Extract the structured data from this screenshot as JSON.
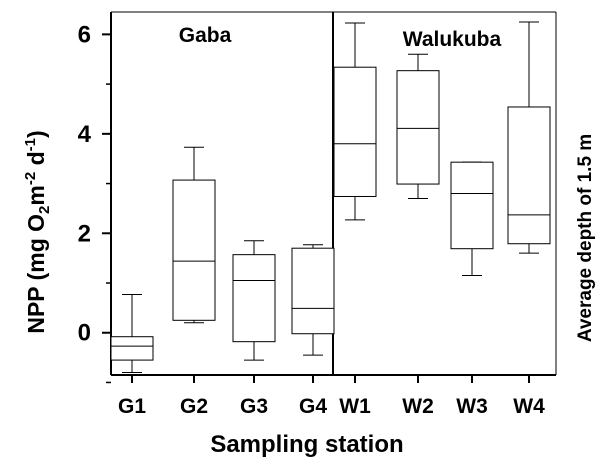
{
  "chart_data": {
    "type": "box",
    "xlabel": "Sampling station",
    "ylabel": {
      "prefix": "NPP (mg O",
      "sub1": "2",
      "mid1": "m",
      "sup1": "-2",
      "mid2": " d",
      "sup2": "-1",
      "suffix": ")"
    },
    "right_label": "Average depth of 1.5 m",
    "panels": [
      {
        "label": "Gaba",
        "categories": [
          "G1",
          "G2",
          "G3",
          "G4"
        ]
      },
      {
        "label": "Walukuba",
        "categories": [
          "W1",
          "W2",
          "W3",
          "W4"
        ]
      }
    ],
    "ylim": [
      -0.85,
      6.45
    ],
    "yticks": [
      "0",
      "2",
      "4",
      "6"
    ],
    "ytick_values": [
      0,
      2,
      4,
      6
    ],
    "minor_ticks": [
      -1,
      1,
      3,
      5
    ],
    "categories": [
      "G1",
      "G2",
      "G3",
      "G4",
      "W1",
      "W2",
      "W3",
      "W4"
    ],
    "boxes": [
      {
        "category": "G1",
        "whislo": -0.8,
        "q1": -0.55,
        "med": -0.27,
        "q3": -0.08,
        "whishi": 0.77
      },
      {
        "category": "G2",
        "whislo": 0.2,
        "q1": 0.25,
        "med": 1.44,
        "q3": 3.07,
        "whishi": 3.73
      },
      {
        "category": "G3",
        "whislo": -0.55,
        "q1": -0.18,
        "med": 1.05,
        "q3": 1.57,
        "whishi": 1.85
      },
      {
        "category": "G4",
        "whislo": -0.45,
        "q1": -0.02,
        "med": 0.49,
        "q3": 1.7,
        "whishi": 1.77
      },
      {
        "category": "W1",
        "whislo": 2.27,
        "q1": 2.74,
        "med": 3.8,
        "q3": 5.34,
        "whishi": 6.23
      },
      {
        "category": "W2",
        "whislo": 2.7,
        "q1": 2.99,
        "med": 4.11,
        "q3": 5.27,
        "whishi": 5.6
      },
      {
        "category": "W3",
        "whislo": 1.15,
        "q1": 1.69,
        "med": 2.8,
        "q3": 3.43,
        "whishi": 3.43
      },
      {
        "category": "W4",
        "whislo": 1.6,
        "q1": 1.79,
        "med": 2.37,
        "q3": 4.54,
        "whishi": 6.25
      }
    ],
    "grid": false,
    "legend": "none"
  }
}
